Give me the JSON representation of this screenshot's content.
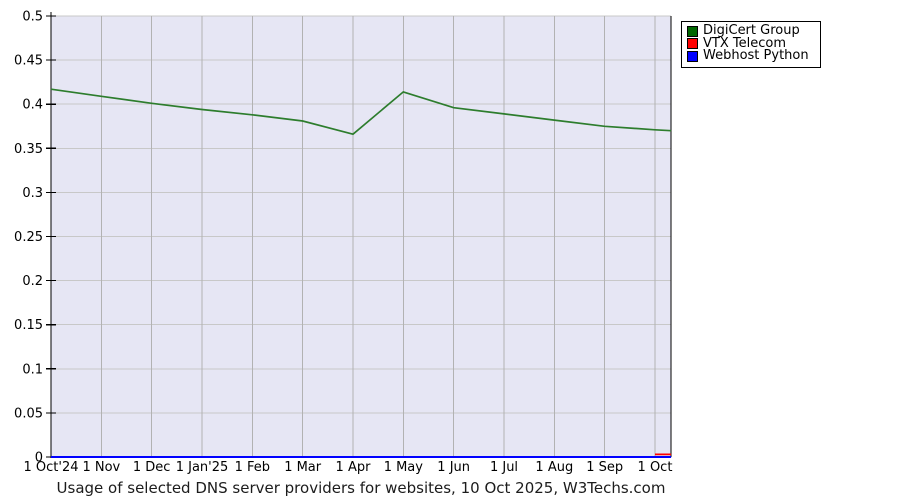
{
  "chart_data": {
    "type": "line",
    "title": "Usage of selected DNS server providers for websites, 10 Oct 2025, W3Techs.com",
    "xlabel": "",
    "ylabel": "",
    "ylim": [
      0,
      0.5
    ],
    "x_unit": "months since 1 Oct 2024",
    "x_end": 12.32,
    "grid": true,
    "legend_position": "top-right",
    "x_tick_labels": [
      "1 Oct'24",
      "1 Nov",
      "1 Dec",
      "1 Jan'25",
      "1 Feb",
      "1 Mar",
      "1 Apr",
      "1 May",
      "1 Jun",
      "1 Jul",
      "1 Aug",
      "1 Sep",
      "1 Oct"
    ],
    "y_ticks": [
      0,
      0.05,
      0.1,
      0.15,
      0.2,
      0.25,
      0.3,
      0.35,
      0.4,
      0.45,
      0.5
    ],
    "series": [
      {
        "name": "DigiCert Group",
        "legend_color": "#006600",
        "line_color": "#2d7d2d",
        "points": [
          [
            0,
            0.417
          ],
          [
            1,
            0.409
          ],
          [
            2,
            0.401
          ],
          [
            3,
            0.394
          ],
          [
            4,
            0.388
          ],
          [
            5,
            0.381
          ],
          [
            6,
            0.366
          ],
          [
            7,
            0.414
          ],
          [
            8,
            0.396
          ],
          [
            9,
            0.389
          ],
          [
            10,
            0.382
          ],
          [
            11,
            0.375
          ],
          [
            12,
            0.371
          ],
          [
            12.32,
            0.37
          ]
        ]
      },
      {
        "name": "VTX Telecom",
        "legend_color": "#ff0000",
        "line_color": "#ff0000",
        "points": [
          [
            12,
            0.003
          ],
          [
            12.32,
            0.003
          ]
        ]
      },
      {
        "name": "Webhost Python",
        "legend_color": "#0000ff",
        "line_color": "#0000ff",
        "points": [
          [
            0,
            0.0
          ],
          [
            12.32,
            0.0
          ]
        ]
      }
    ],
    "colors": {
      "plot_bg": "#e6e6f4",
      "grid_horizontal": "#c8c8c8",
      "grid_vertical": "#b2b2b2",
      "axis": "#000000",
      "text": "#000000"
    }
  }
}
